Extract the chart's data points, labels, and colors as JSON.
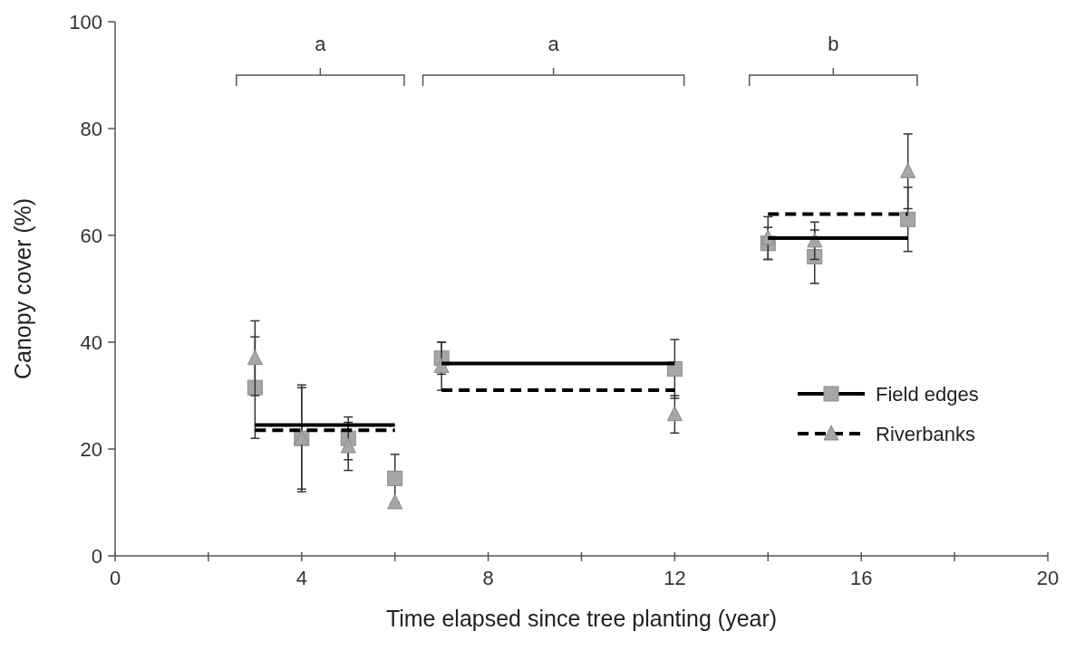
{
  "chart_data": {
    "type": "scatter",
    "xlabel": "Time elapsed since tree planting (year)",
    "ylabel": "Canopy cover (%)",
    "xlim": [
      0,
      20
    ],
    "xticks": [
      0,
      {
        "value": 2,
        "label": null
      },
      4,
      {
        "value": 6,
        "label": null
      },
      8,
      {
        "value": 10,
        "label": null
      },
      12,
      {
        "value": 14,
        "label": null
      },
      16,
      {
        "value": 18,
        "label": null
      },
      20
    ],
    "ylim": [
      0,
      100
    ],
    "yticks": [
      0,
      20,
      40,
      60,
      80,
      100
    ],
    "grid": false,
    "legend": "right",
    "series": [
      {
        "name": "Field edges",
        "marker": "square",
        "color": "#a6a6a6",
        "x": [
          3,
          4,
          5,
          6,
          7,
          12,
          14,
          15,
          17
        ],
        "values": [
          31.5,
          22,
          22,
          14.5,
          37,
          35,
          58.5,
          56,
          63
        ],
        "errors": [
          9.5,
          9.5,
          4,
          4.5,
          3,
          5.5,
          3,
          5,
          6
        ]
      },
      {
        "name": "Riverbanks",
        "marker": "triangle",
        "color": "#a6a6a6",
        "x": [
          3,
          4,
          5,
          6,
          7,
          12,
          14,
          15,
          17
        ],
        "values": [
          37,
          22,
          20.5,
          10,
          35.5,
          26.5,
          59.5,
          59,
          72
        ],
        "errors": [
          7,
          10,
          4.5,
          null,
          4.5,
          3.5,
          4,
          3.5,
          7
        ]
      },
      {
        "type": "line",
        "line_style": "solid",
        "color": "#000000",
        "x": [
          3,
          6,
          6.5,
          7,
          12,
          13,
          14,
          17
        ],
        "values": [
          24.5,
          24.5,
          null,
          36,
          36,
          null,
          59.5,
          59.5
        ]
      },
      {
        "type": "line",
        "line_style": "dashed",
        "color": "#000000",
        "x": [
          3,
          6,
          6.5,
          7,
          12,
          13,
          14,
          17
        ],
        "values": [
          23.5,
          23.5,
          null,
          31,
          31,
          null,
          64,
          64
        ]
      }
    ],
    "annotations": [
      "a",
      "a",
      "b"
    ]
  }
}
